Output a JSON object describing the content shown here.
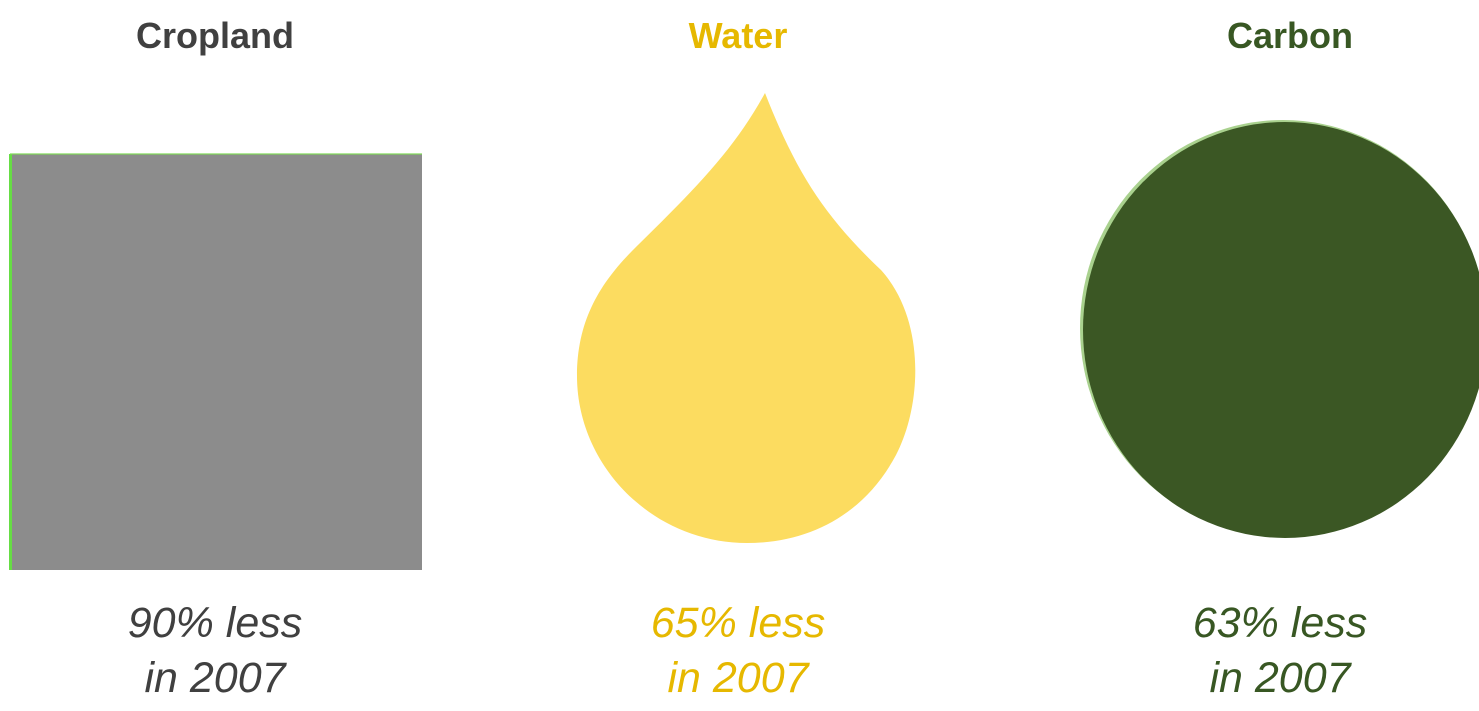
{
  "panels": [
    {
      "title": "Cropland",
      "caption_line1": "90% less",
      "caption_line2": "in 2007",
      "shape_icon": "square-icon",
      "color": "#404040",
      "shape_fill": "#8c8c8c",
      "shape_edge": "#66dd44"
    },
    {
      "title": "Water",
      "caption_line1": "65% less",
      "caption_line2": "in 2007",
      "shape_icon": "water-drop-icon",
      "color": "#e6b800",
      "shape_fill": "#fcdc60"
    },
    {
      "title": "Carbon",
      "caption_line1": "63% less",
      "caption_line2": "in 2007",
      "shape_icon": "circle-icon",
      "color": "#385723",
      "shape_fill": "#3b5724",
      "shape_edge": "#a9d18e"
    }
  ]
}
